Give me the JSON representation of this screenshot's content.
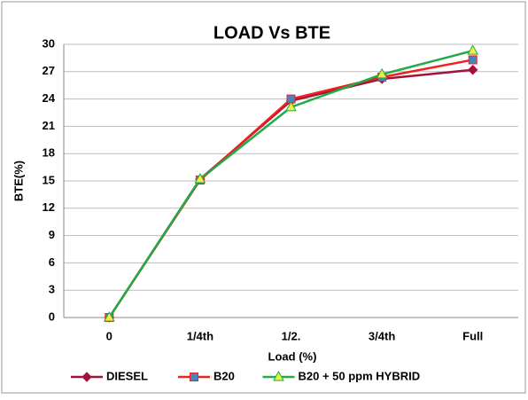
{
  "chart_data": {
    "type": "line",
    "title": "LOAD Vs BTE",
    "x_label": "Load (%)",
    "y_label": "BTE(%)",
    "categories": [
      "0",
      "1/4th",
      "1/2.",
      "3/4th",
      "Full"
    ],
    "series": [
      {
        "name": "DIESEL",
        "color": "#a0143c",
        "marker": "diamond",
        "marker_color": "#a0143c",
        "values": [
          0,
          15.2,
          23.8,
          26.2,
          27.2
        ]
      },
      {
        "name": "B20",
        "color": "#ee2020",
        "marker": "square",
        "marker_color": "#4f81bd",
        "values": [
          0,
          15.1,
          24.0,
          26.4,
          28.3
        ]
      },
      {
        "name": "B20 + 50 ppm HYBRID",
        "color": "#22aa44",
        "marker": "triangle",
        "marker_color": "#eeee44",
        "values": [
          0,
          15.2,
          23.1,
          26.7,
          29.3
        ]
      }
    ],
    "ylim": [
      0,
      30
    ],
    "yticks": [
      0,
      3,
      6,
      9,
      12,
      15,
      18,
      21,
      24,
      27,
      30
    ],
    "grid": true,
    "legend": "bottom"
  }
}
